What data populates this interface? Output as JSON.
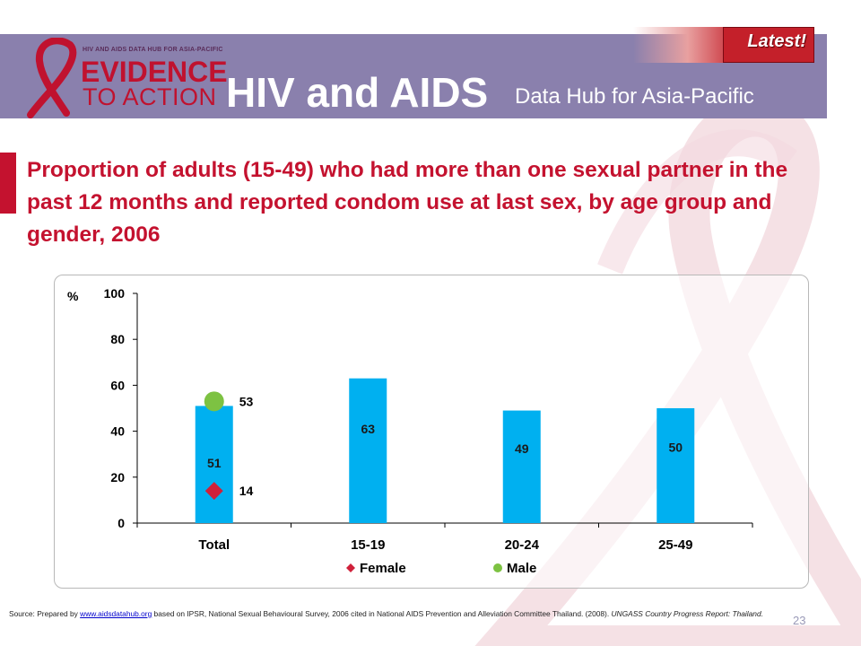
{
  "header": {
    "logo_small": "HIV AND AIDS DATA HUB FOR ASIA-PACIFIC",
    "logo_line1": "EVIDENCE",
    "logo_line2": "TO ACTION",
    "title": "HIV and AIDS",
    "subtitle": "Data Hub for Asia-Pacific",
    "badge": "Latest!",
    "band_color": "#8a80ad"
  },
  "slide": {
    "title": "Proportion of adults (15-49) who had more than one sexual  partner in the past 12 months and reported condom use at last sex, by age group and gender, 2006",
    "title_color": "#c4122f",
    "page_number": "23"
  },
  "source": {
    "prefix": "Source: Prepared by ",
    "link": "www.aidsdatahub.org",
    "middle": " based on IPSR, National Sexual Behavioural Survey, 2006 cited in National AIDS Prevention and Alleviation Committee Thailand. (2008). ",
    "italic": "UNGASS Country Progress Report: Thailand."
  },
  "chart_data": {
    "type": "bar",
    "categories": [
      "Total",
      "15-19",
      "20-24",
      "25-49"
    ],
    "ylabel": "%",
    "ylim": [
      0,
      100
    ],
    "yticks": [
      0,
      20,
      40,
      60,
      80,
      100
    ],
    "bars": {
      "values": [
        51,
        63,
        49,
        50
      ],
      "labels": [
        "51",
        "63",
        "49",
        "50"
      ],
      "color": "#00b0f0"
    },
    "series": [
      {
        "name": "Female",
        "marker": "diamond",
        "color": "#d0203a",
        "points": [
          {
            "category": "Total",
            "value": 14,
            "label": "14"
          }
        ]
      },
      {
        "name": "Male",
        "marker": "circle",
        "color": "#7dc242",
        "points": [
          {
            "category": "Total",
            "value": 53,
            "label": "53"
          }
        ]
      }
    ],
    "legend": "bottom"
  }
}
